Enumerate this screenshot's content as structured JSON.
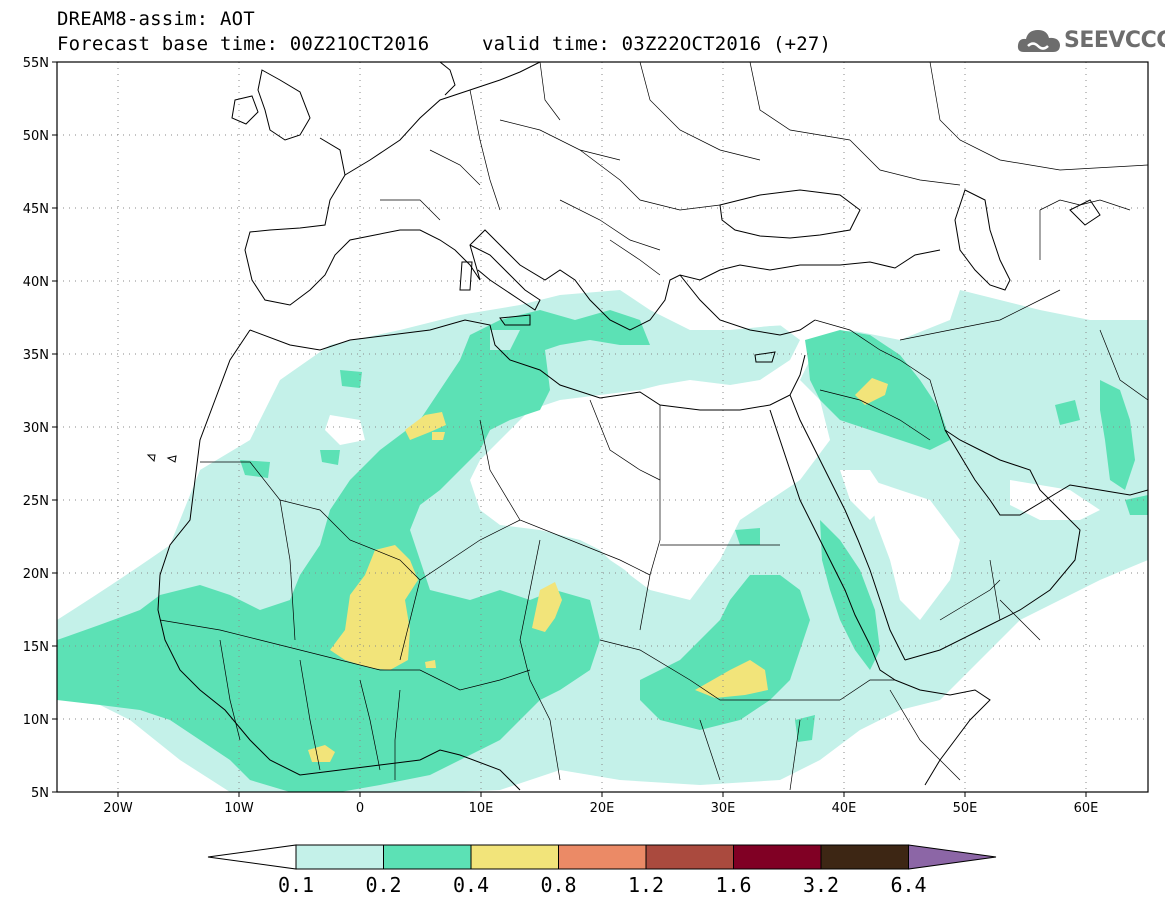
{
  "header": {
    "title": "DREAM8-assim: AOT",
    "base_time": "Forecast base time: 00Z21OCT2016",
    "valid_time": "valid time: 03Z22OCT2016 (+27)"
  },
  "logo": {
    "text": "SEEVCCC",
    "icon": "cloud-logo-icon",
    "color": "#6d6d6d"
  },
  "map": {
    "lon_range": [
      -25,
      65
    ],
    "lat_range": [
      5,
      55
    ],
    "lat_labels": [
      "55N",
      "50N",
      "45N",
      "40N",
      "35N",
      "30N",
      "25N",
      "20N",
      "15N",
      "10N",
      "5N"
    ],
    "lon_labels": [
      "20W",
      "10W",
      "0",
      "10E",
      "20E",
      "30E",
      "40E",
      "50E",
      "60E"
    ],
    "grid": "dotted",
    "colors": {
      "light": "#c4f1e9",
      "mid": "#5ce1b5",
      "high": "#f2e47a"
    }
  },
  "colorbar": {
    "levels": [
      "0.1",
      "0.2",
      "0.4",
      "0.8",
      "1.2",
      "1.6",
      "3.2",
      "6.4"
    ],
    "colors": [
      "#ffffff",
      "#c4f1e9",
      "#5ce1b5",
      "#f2e47a",
      "#eb8a66",
      "#aa4a3e",
      "#800024",
      "#3d2614",
      "#8c66a6"
    ]
  }
}
